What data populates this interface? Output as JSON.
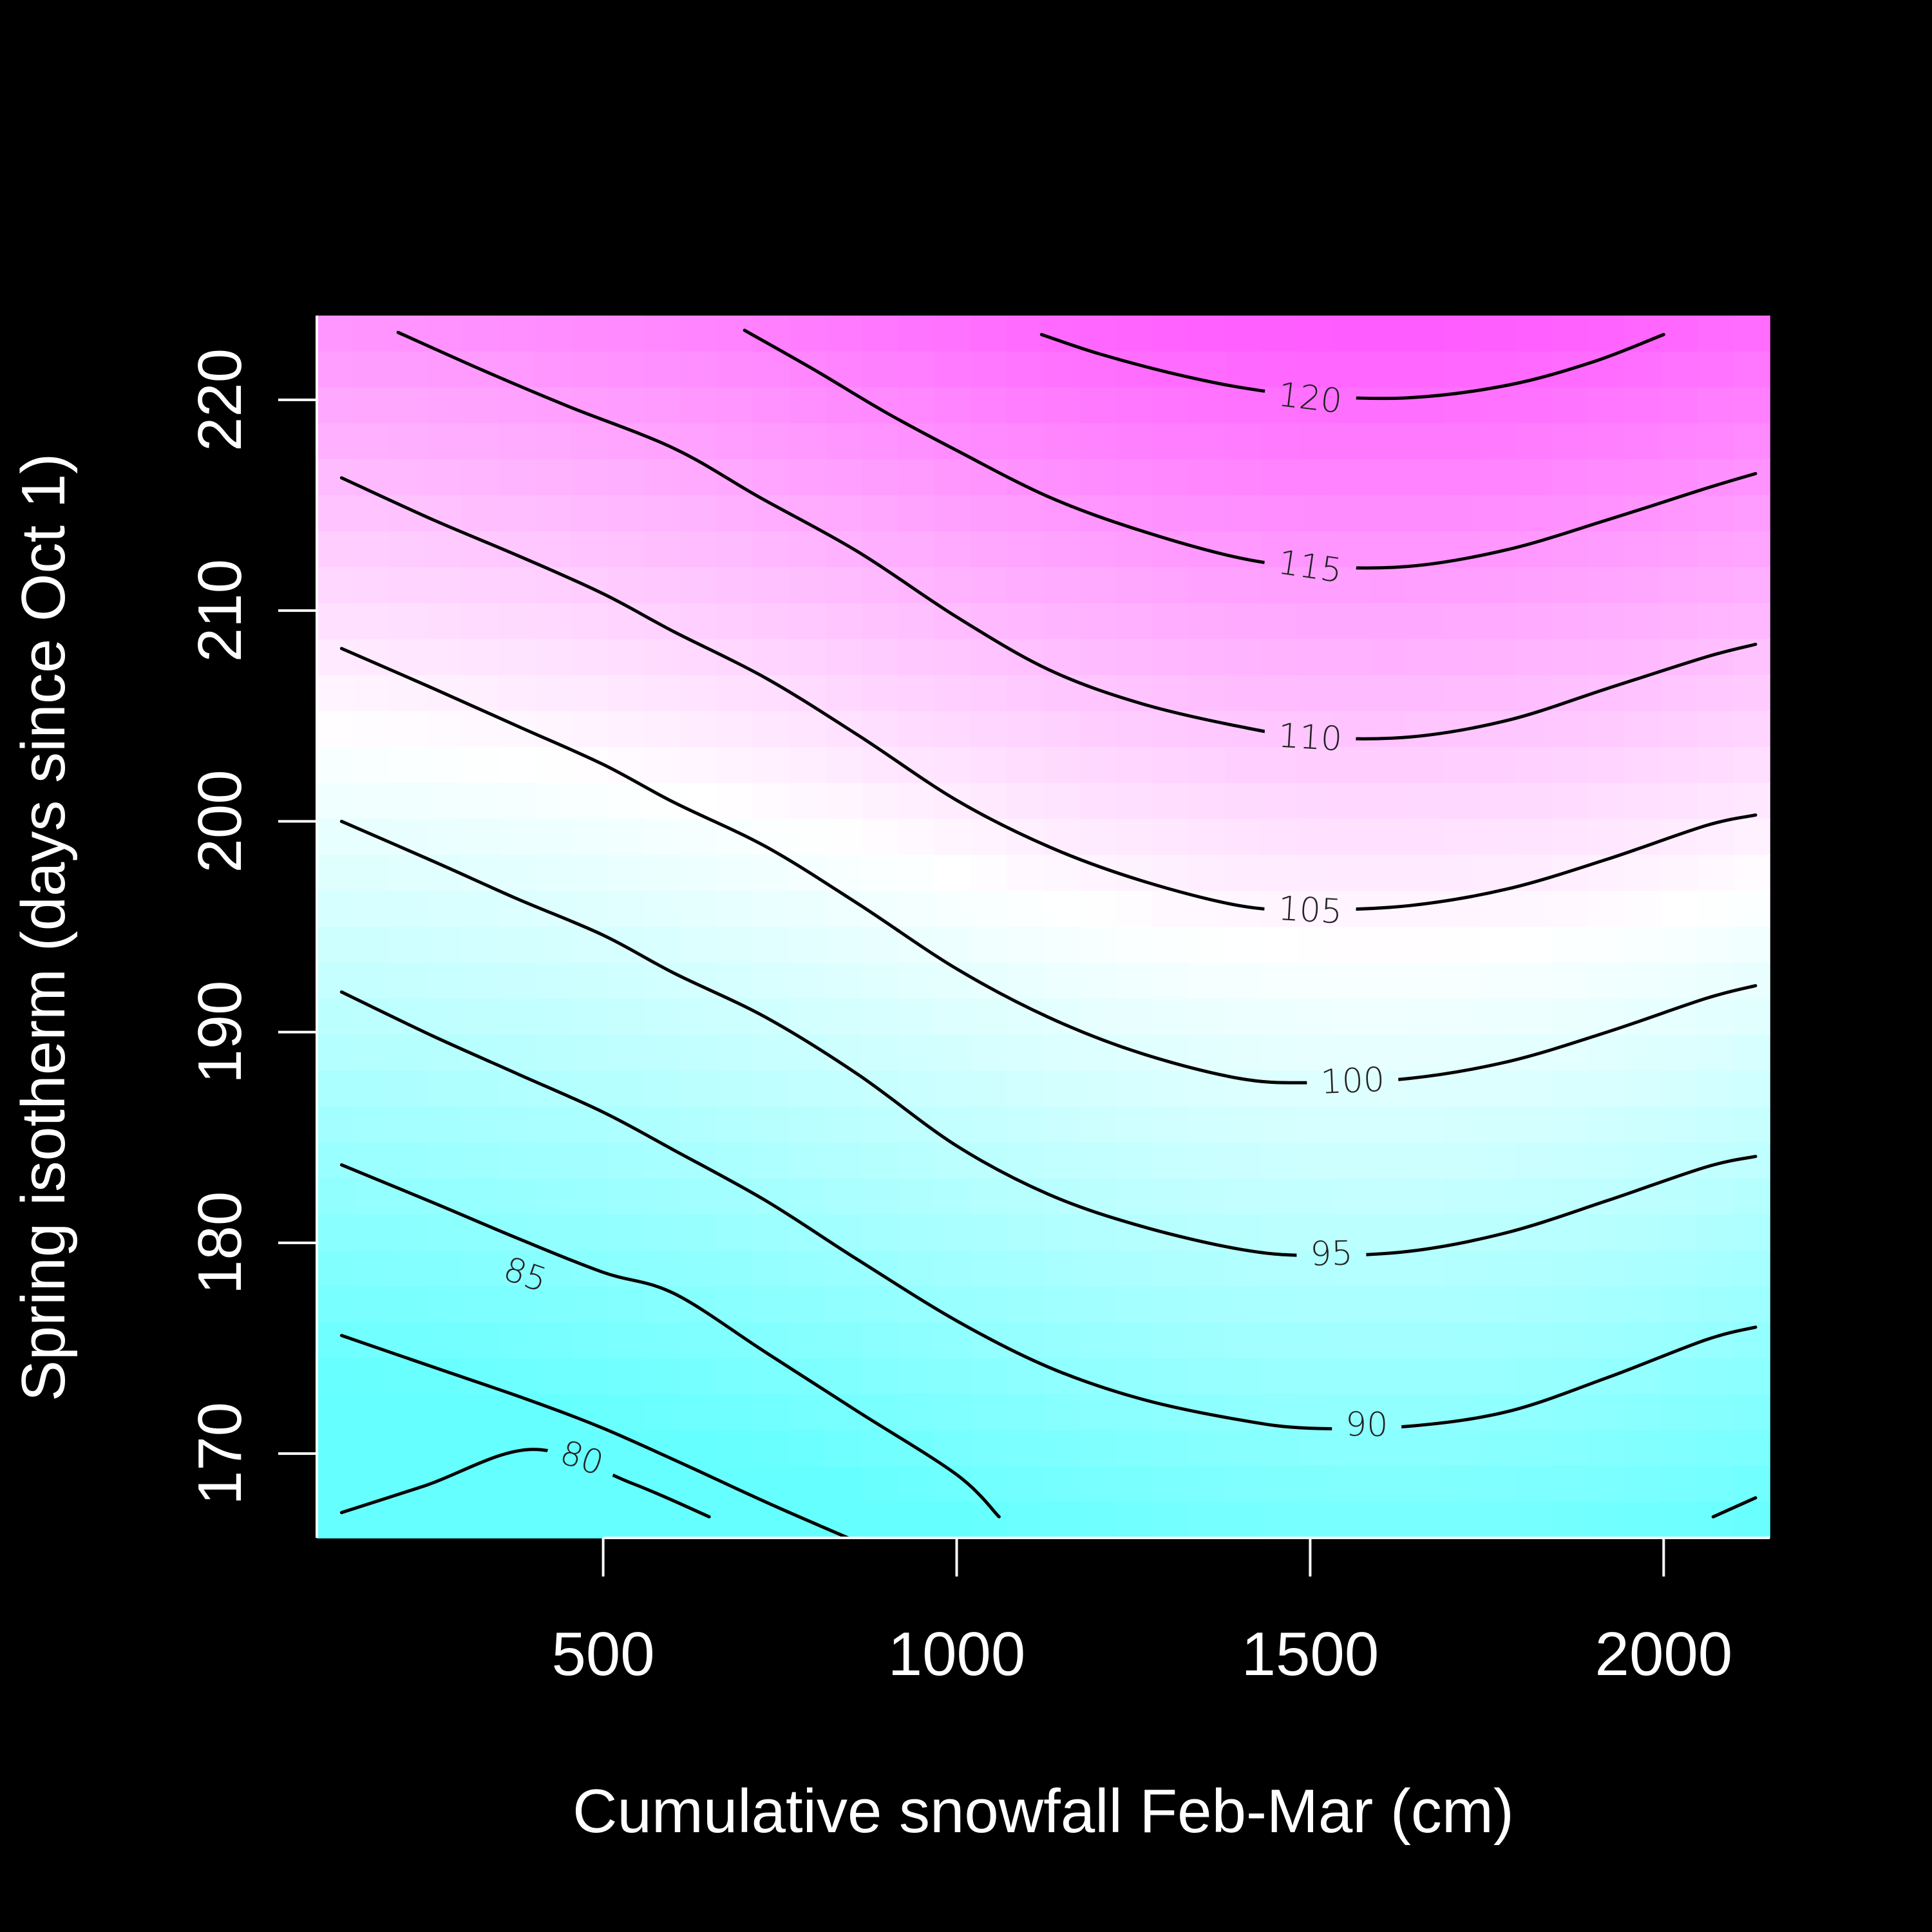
{
  "chart_data": {
    "type": "heatmap",
    "title": "",
    "xlabel": "Cumulative snowfall Feb-Mar (cm)",
    "ylabel": "Spring isotherm (days since Oct 1)",
    "xlim": [
      95,
      2150
    ],
    "ylim": [
      166,
      224
    ],
    "x_ticks": [
      500,
      1000,
      1500,
      2000
    ],
    "y_ticks": [
      170,
      180,
      190,
      200,
      210,
      220
    ],
    "grid": false,
    "legend": "none",
    "colormap": {
      "low": "#66ffff",
      "mid": "#ffffff",
      "high": "#ff55ff"
    },
    "z_range": [
      75,
      124
    ],
    "contours": [
      {
        "level": 80,
        "label": "80",
        "label_at": [
          470,
          169.8
        ],
        "points": [
          [
            130,
            167.2
          ],
          [
            250,
            168.5
          ],
          [
            400,
            170.2
          ],
          [
            540,
            168.6
          ],
          [
            650,
            167.0
          ]
        ]
      },
      {
        "level": 85,
        "label": "85",
        "label_at": [
          390,
          178.5
        ],
        "points": [
          [
            130,
            175.6
          ],
          [
            260,
            174.1
          ],
          [
            390,
            172.6
          ],
          [
            500,
            171.2
          ],
          [
            620,
            169.4
          ],
          [
            750,
            167.4
          ],
          [
            930,
            164.8
          ]
        ]
      },
      {
        "level": 90,
        "label": "90",
        "label_at": [
          1580,
          171.4
        ],
        "points": [
          [
            130,
            183.7
          ],
          [
            260,
            181.9
          ],
          [
            380,
            180.2
          ],
          [
            500,
            178.6
          ],
          [
            600,
            177.6
          ],
          [
            730,
            174.8
          ],
          [
            860,
            172.0
          ],
          [
            1000,
            169.0
          ],
          [
            1060,
            167.0
          ]
        ]
      },
      {
        "level": 95,
        "label": "95",
        "label_at": [
          1530,
          179.5
        ],
        "points": [
          [
            130,
            191.9
          ],
          [
            260,
            189.8
          ],
          [
            380,
            188.0
          ],
          [
            500,
            186.2
          ],
          [
            600,
            184.4
          ],
          [
            730,
            182.0
          ],
          [
            860,
            179.2
          ],
          [
            1000,
            176.3
          ],
          [
            1130,
            174.1
          ],
          [
            1260,
            172.6
          ],
          [
            1400,
            171.6
          ],
          [
            1500,
            171.2
          ],
          [
            1640,
            171.3
          ],
          [
            1780,
            172.0
          ],
          [
            1920,
            173.6
          ],
          [
            2060,
            175.4
          ],
          [
            2130,
            176.0
          ]
        ]
      },
      {
        "level": 100,
        "label": "100",
        "label_at": [
          1560,
          187.7
        ],
        "points": [
          [
            130,
            200.0
          ],
          [
            260,
            198.1
          ],
          [
            380,
            196.3
          ],
          [
            500,
            194.6
          ],
          [
            600,
            192.8
          ],
          [
            730,
            190.7
          ],
          [
            860,
            188.0
          ],
          [
            1000,
            184.6
          ],
          [
            1130,
            182.3
          ],
          [
            1260,
            180.8
          ],
          [
            1400,
            179.7
          ],
          [
            1500,
            179.4
          ],
          [
            1640,
            179.6
          ],
          [
            1780,
            180.5
          ],
          [
            1920,
            182.0
          ],
          [
            2060,
            183.6
          ],
          [
            2130,
            184.1
          ]
        ]
      },
      {
        "level": 105,
        "label": "105",
        "label_at": [
          1500,
          195.8
        ],
        "points": [
          [
            130,
            208.2
          ],
          [
            260,
            206.3
          ],
          [
            380,
            204.5
          ],
          [
            500,
            202.7
          ],
          [
            600,
            200.9
          ],
          [
            730,
            198.8
          ],
          [
            860,
            196.1
          ],
          [
            1000,
            193.0
          ],
          [
            1130,
            190.7
          ],
          [
            1260,
            189.0
          ],
          [
            1400,
            187.8
          ],
          [
            1500,
            187.6
          ],
          [
            1640,
            187.8
          ],
          [
            1780,
            188.6
          ],
          [
            1920,
            190.0
          ],
          [
            2060,
            191.6
          ],
          [
            2130,
            192.2
          ]
        ]
      },
      {
        "level": 110,
        "label": "110",
        "label_at": [
          1500,
          204.0
        ],
        "points": [
          [
            130,
            216.3
          ],
          [
            260,
            214.3
          ],
          [
            380,
            212.6
          ],
          [
            500,
            210.8
          ],
          [
            600,
            209.0
          ],
          [
            730,
            206.8
          ],
          [
            860,
            204.1
          ],
          [
            1000,
            201.0
          ],
          [
            1130,
            198.8
          ],
          [
            1260,
            197.2
          ],
          [
            1400,
            196.0
          ],
          [
            1500,
            195.8
          ],
          [
            1640,
            196.0
          ],
          [
            1780,
            196.8
          ],
          [
            1920,
            198.2
          ],
          [
            2060,
            199.8
          ],
          [
            2130,
            200.3
          ]
        ]
      },
      {
        "level": 115,
        "label": "115",
        "label_at": [
          1500,
          212.1
        ],
        "points": [
          [
            210,
            223.2
          ],
          [
            330,
            221.4
          ],
          [
            450,
            219.7
          ],
          [
            600,
            217.7
          ],
          [
            720,
            215.4
          ],
          [
            860,
            212.8
          ],
          [
            1000,
            209.7
          ],
          [
            1130,
            207.2
          ],
          [
            1260,
            205.6
          ],
          [
            1400,
            204.5
          ],
          [
            1500,
            204.0
          ],
          [
            1640,
            204.0
          ],
          [
            1780,
            204.8
          ],
          [
            1920,
            206.3
          ],
          [
            2060,
            207.8
          ],
          [
            2130,
            208.4
          ]
        ]
      },
      {
        "level": 120,
        "label": "120",
        "label_at": [
          1500,
          220.1
        ],
        "points": [
          [
            700,
            223.3
          ],
          [
            800,
            221.4
          ],
          [
            900,
            219.4
          ],
          [
            1000,
            217.6
          ],
          [
            1130,
            215.4
          ],
          [
            1260,
            213.8
          ],
          [
            1400,
            212.5
          ],
          [
            1500,
            212.1
          ],
          [
            1640,
            212.1
          ],
          [
            1780,
            212.9
          ],
          [
            1920,
            214.3
          ],
          [
            2060,
            215.8
          ],
          [
            2130,
            216.5
          ]
        ]
      },
      {
        "level": 120,
        "label": "",
        "label_at": null,
        "points": [
          [
            1120,
            223.1
          ],
          [
            1200,
            222.2
          ],
          [
            1300,
            221.3
          ],
          [
            1400,
            220.6
          ],
          [
            1500,
            220.2
          ],
          [
            1640,
            220.1
          ],
          [
            1780,
            220.7
          ],
          [
            1900,
            221.8
          ],
          [
            2000,
            223.1
          ]
        ]
      },
      {
        "level": 90,
        "label": "",
        "label_at": null,
        "points": [
          [
            2070,
            167.0
          ],
          [
            2130,
            167.9
          ]
        ]
      }
    ]
  }
}
